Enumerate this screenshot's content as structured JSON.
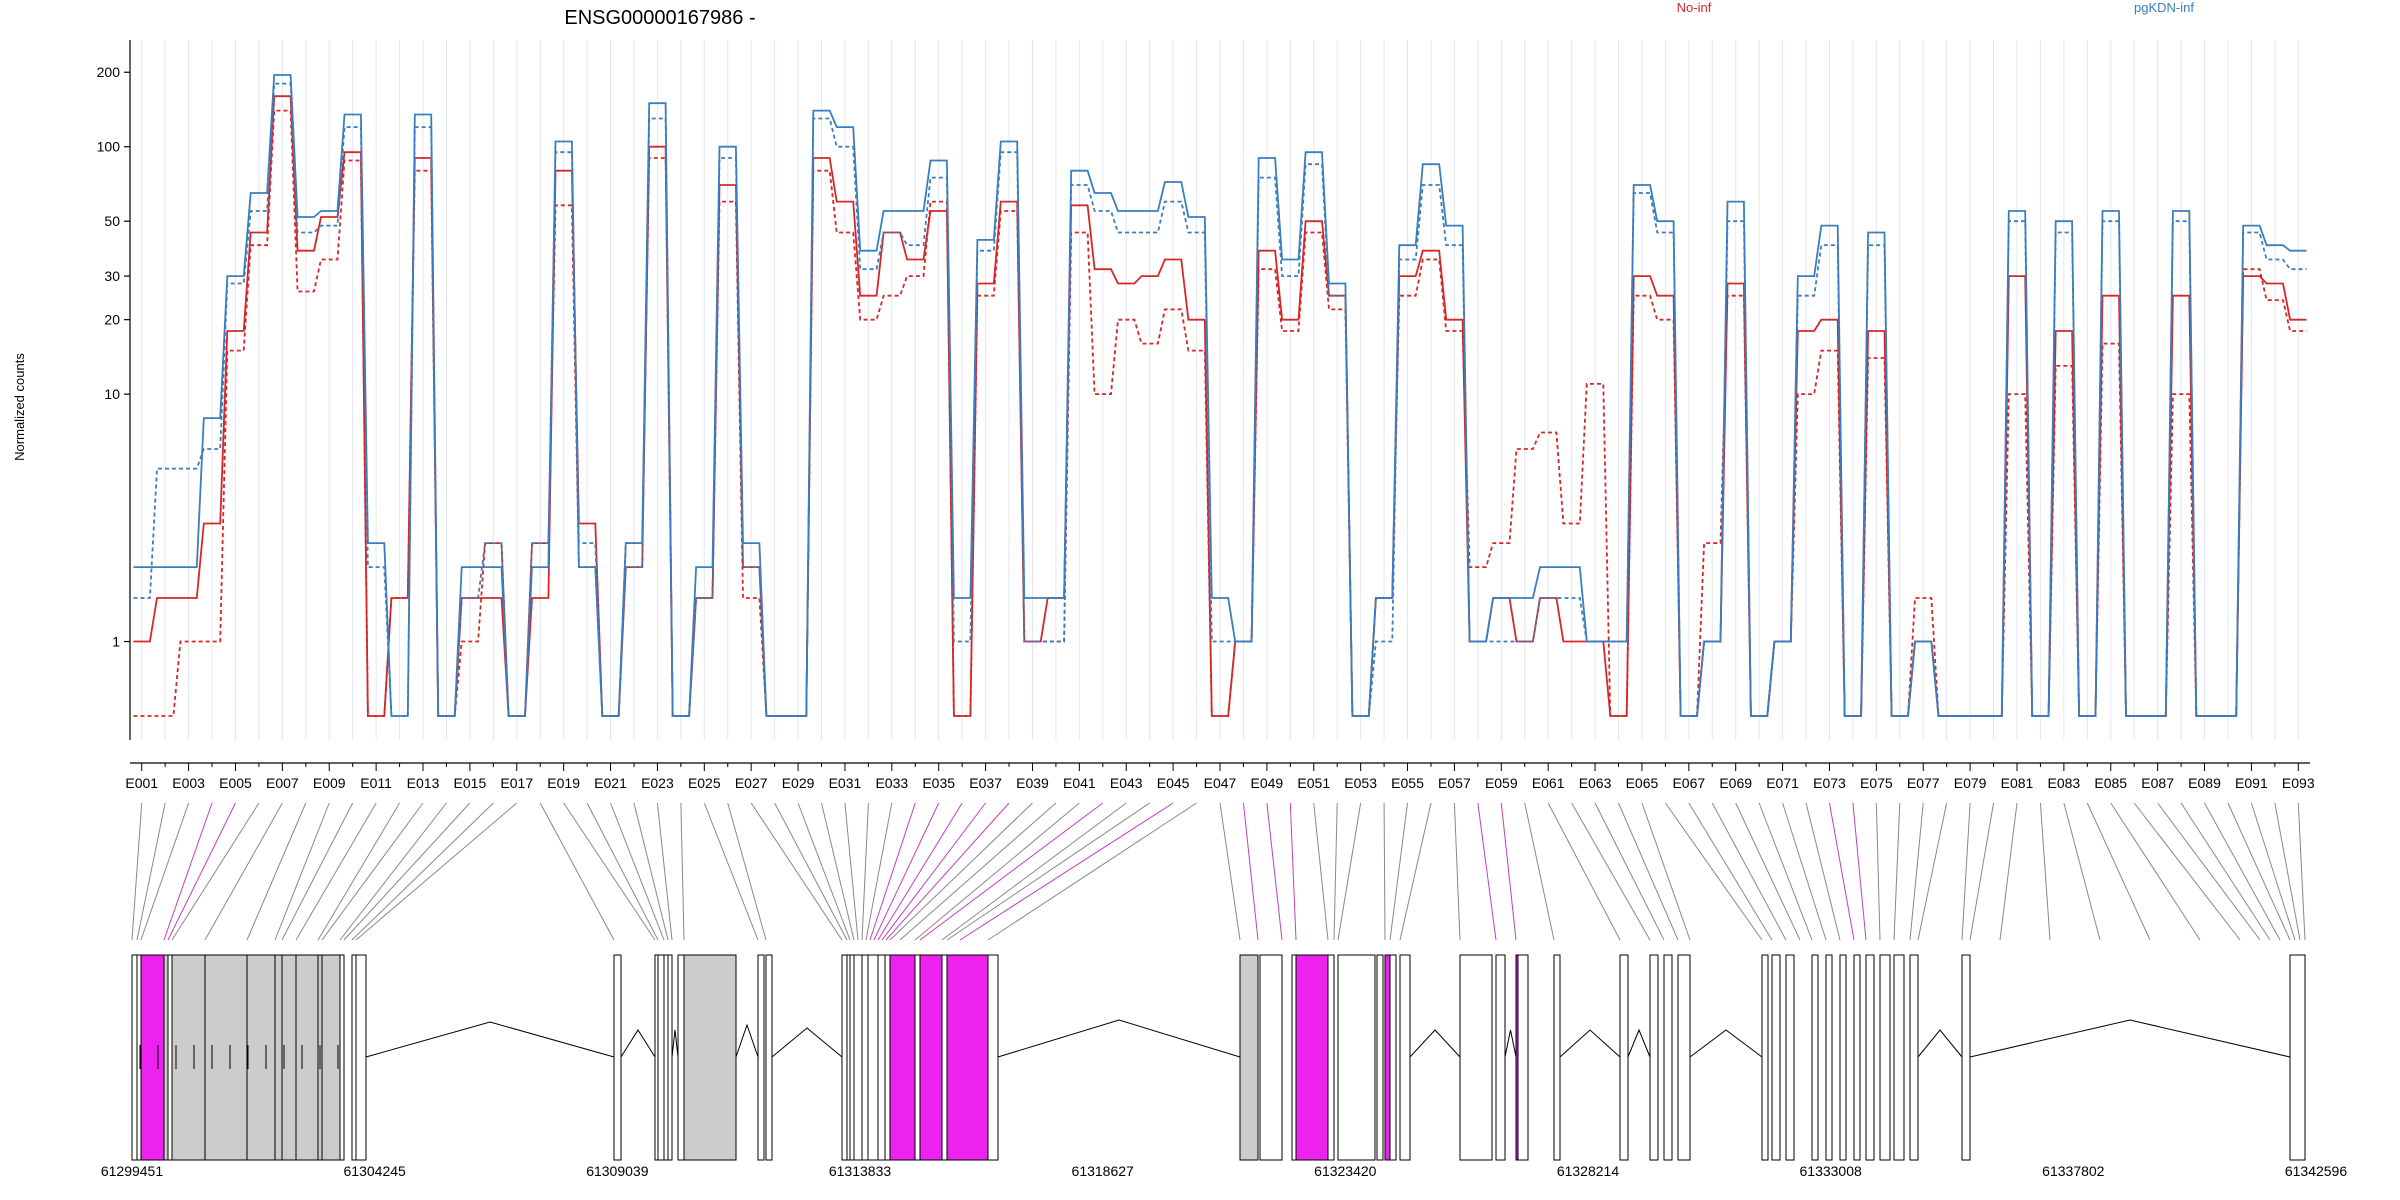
{
  "chart_data": {
    "type": "line",
    "title": "ENSG00000167986 -",
    "ylabel": "Normalized counts",
    "xlabel": "",
    "yscale": "log",
    "ylim": [
      0.4,
      270
    ],
    "grid": true,
    "legend_position": "top",
    "legend": [
      {
        "label": "No-inf",
        "color": "#d62728"
      },
      {
        "label": "pgKDN-inf",
        "color": "#3a7ebd"
      }
    ],
    "yticks": [
      1,
      10,
      20,
      30,
      50,
      100,
      200
    ],
    "ytick_labels": [
      "1",
      "10",
      "20",
      "30",
      "50",
      "100",
      "200"
    ],
    "exon_count": 93,
    "exon_tick_labels": [
      "E001",
      "E003",
      "E005",
      "E007",
      "E009",
      "E011",
      "E013",
      "E015",
      "E017",
      "E019",
      "E021",
      "E023",
      "E025",
      "E027",
      "E029",
      "E031",
      "E033",
      "E035",
      "E037",
      "E039",
      "E041",
      "E043",
      "E045",
      "E047",
      "E049",
      "E051",
      "E053",
      "E055",
      "E057",
      "E059",
      "E061",
      "E063",
      "E065",
      "E067",
      "E069",
      "E071",
      "E073",
      "E075",
      "E077",
      "E079",
      "E081",
      "E083",
      "E085",
      "E087",
      "E089",
      "E091",
      "E093"
    ],
    "series": [
      {
        "group": "No-inf",
        "color": "#d62728",
        "style": "solid",
        "values": [
          1,
          1.5,
          1.5,
          3,
          18,
          45,
          160,
          38,
          52,
          95,
          0.5,
          1.5,
          90,
          0.5,
          1.5,
          1.5,
          0.5,
          1.5,
          80,
          3,
          0.5,
          2,
          100,
          0.5,
          1.5,
          70,
          2,
          0.5,
          0.5,
          90,
          60,
          25,
          45,
          35,
          55,
          0.5,
          28,
          60,
          1,
          1.5,
          58,
          32,
          28,
          30,
          35,
          20,
          0.5,
          1,
          38,
          20,
          50,
          25,
          0.5,
          1.5,
          30,
          38,
          20,
          1,
          1.5,
          1,
          1.5,
          1,
          1,
          0.5,
          30,
          25,
          0.5,
          1,
          28,
          0.5,
          1,
          18,
          20,
          0.5,
          18,
          0.5,
          1,
          0.5,
          0.5,
          0.5,
          30,
          0.5,
          18,
          0.5,
          25,
          0.5,
          0.5,
          25,
          0.5,
          0.5,
          30,
          28,
          20
        ]
      },
      {
        "group": "No-inf",
        "color": "#d62728",
        "style": "dashed",
        "values": [
          0.5,
          0.5,
          1,
          1,
          15,
          40,
          140,
          26,
          35,
          88,
          0.5,
          1.5,
          80,
          0.5,
          1,
          2.5,
          0.5,
          2.5,
          58,
          2,
          0.5,
          2.5,
          90,
          0.5,
          1.5,
          60,
          1.5,
          0.5,
          0.5,
          80,
          45,
          20,
          25,
          30,
          60,
          0.5,
          25,
          55,
          1,
          1,
          45,
          10,
          20,
          16,
          22,
          15,
          0.5,
          1,
          32,
          18,
          45,
          22,
          0.5,
          1.5,
          25,
          35,
          18,
          2,
          2.5,
          6,
          7,
          3,
          11,
          0.5,
          25,
          20,
          0.5,
          2.5,
          25,
          0.5,
          1,
          10,
          15,
          0.5,
          14,
          0.5,
          1.5,
          0.5,
          0.5,
          0.5,
          10,
          0.5,
          13,
          0.5,
          16,
          0.5,
          0.5,
          10,
          0.5,
          0.5,
          32,
          24,
          18
        ]
      },
      {
        "group": "pgKDN-inf",
        "color": "#3a7ebd",
        "style": "solid",
        "values": [
          2,
          2,
          2,
          8,
          30,
          65,
          195,
          52,
          55,
          135,
          2.5,
          0.5,
          135,
          0.5,
          2,
          2,
          0.5,
          2,
          105,
          2,
          0.5,
          2.5,
          150,
          0.5,
          2,
          100,
          2.5,
          0.5,
          0.5,
          140,
          120,
          38,
          55,
          55,
          88,
          1.5,
          42,
          105,
          1.5,
          1.5,
          80,
          65,
          55,
          55,
          72,
          52,
          1.5,
          1,
          90,
          35,
          95,
          28,
          0.5,
          1.5,
          40,
          85,
          48,
          1,
          1.5,
          1.5,
          2,
          2,
          1,
          1,
          70,
          50,
          0.5,
          1,
          60,
          0.5,
          1,
          30,
          48,
          0.5,
          45,
          0.5,
          1,
          0.5,
          0.5,
          0.5,
          55,
          0.5,
          50,
          0.5,
          55,
          0.5,
          0.5,
          55,
          0.5,
          0.5,
          48,
          40,
          38
        ]
      },
      {
        "group": "pgKDN-inf",
        "color": "#3a7ebd",
        "style": "dashed",
        "values": [
          1.5,
          5,
          5,
          6,
          28,
          55,
          180,
          45,
          48,
          120,
          2,
          0.5,
          120,
          0.5,
          1.5,
          2.5,
          0.5,
          2.5,
          95,
          2.5,
          0.5,
          2,
          130,
          0.5,
          1.5,
          90,
          2,
          0.5,
          0.5,
          130,
          100,
          32,
          45,
          40,
          75,
          1,
          38,
          95,
          1,
          1,
          70,
          55,
          45,
          45,
          60,
          45,
          1,
          1,
          75,
          30,
          85,
          25,
          0.5,
          1,
          35,
          70,
          40,
          1,
          1,
          1,
          1.5,
          1.5,
          1,
          1,
          65,
          45,
          0.5,
          1,
          50,
          0.5,
          1,
          25,
          40,
          0.5,
          40,
          0.5,
          1,
          0.5,
          0.5,
          0.5,
          50,
          0.5,
          45,
          0.5,
          50,
          0.5,
          0.5,
          50,
          0.5,
          0.5,
          45,
          35,
          32
        ]
      }
    ],
    "genomic_axis": {
      "range": [
        61299451,
        61342596
      ],
      "tick_labels": [
        "61299451",
        "61304245",
        "61309039",
        "61313833",
        "61318627",
        "61323420",
        "61328214",
        "61333008",
        "61337802",
        "61342596"
      ]
    }
  }
}
